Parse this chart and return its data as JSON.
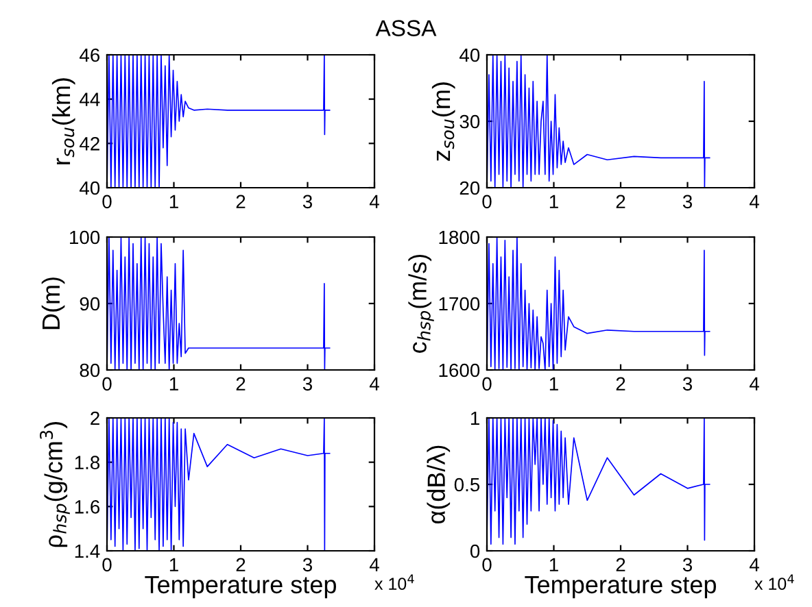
{
  "chart_data": [
    {
      "type": "line",
      "title": "ASSA",
      "ylabel": "r$_{sou}$(km)",
      "ylim": [
        40,
        46
      ],
      "yticks": [
        40,
        42,
        44,
        46
      ],
      "xlim": [
        0,
        4
      ],
      "xticks": [
        0,
        1,
        2,
        3,
        4
      ],
      "grid": false,
      "x": [
        0,
        0.03,
        0.06,
        0.09,
        0.12,
        0.15,
        0.18,
        0.21,
        0.24,
        0.27,
        0.3,
        0.33,
        0.36,
        0.39,
        0.42,
        0.45,
        0.48,
        0.51,
        0.54,
        0.57,
        0.6,
        0.63,
        0.66,
        0.69,
        0.72,
        0.75,
        0.78,
        0.81,
        0.84,
        0.87,
        0.9,
        0.93,
        0.96,
        0.99,
        1.02,
        1.05,
        1.08,
        1.11,
        1.14,
        1.17,
        1.22,
        1.3,
        1.5,
        1.8,
        2.2,
        2.6,
        3.0,
        3.24,
        3.25,
        3.255,
        3.26,
        3.33
      ],
      "series": [
        {
          "color": "#0000ff",
          "values": [
            40,
            46,
            40,
            46,
            40,
            46,
            40,
            46,
            40,
            46,
            40,
            46,
            40,
            46,
            40,
            46,
            40,
            46,
            40,
            46,
            40,
            46,
            40,
            46,
            40,
            46,
            40,
            46,
            41.8,
            45.5,
            41,
            46,
            42.3,
            45.3,
            42.6,
            44.8,
            43,
            44.2,
            43.2,
            43.9,
            43.6,
            43.5,
            43.55,
            43.5,
            43.5,
            43.5,
            43.5,
            43.5,
            46,
            42.4,
            43.5,
            43.5
          ]
        }
      ]
    },
    {
      "type": "line",
      "ylabel": "z$_{sou}$(m)",
      "ylim": [
        20,
        40
      ],
      "yticks": [
        20,
        30,
        40
      ],
      "xlim": [
        0,
        4
      ],
      "xticks": [
        0,
        1,
        2,
        3,
        4
      ],
      "grid": false,
      "x": [
        0,
        0.03,
        0.06,
        0.09,
        0.12,
        0.15,
        0.18,
        0.21,
        0.24,
        0.27,
        0.3,
        0.33,
        0.36,
        0.39,
        0.42,
        0.45,
        0.48,
        0.51,
        0.54,
        0.57,
        0.6,
        0.63,
        0.66,
        0.69,
        0.72,
        0.75,
        0.78,
        0.81,
        0.84,
        0.87,
        0.9,
        0.93,
        0.96,
        0.99,
        1.02,
        1.05,
        1.08,
        1.11,
        1.14,
        1.17,
        1.22,
        1.3,
        1.5,
        1.8,
        2.2,
        2.6,
        3.0,
        3.24,
        3.25,
        3.255,
        3.26,
        3.33
      ],
      "series": [
        {
          "color": "#0000ff",
          "values": [
            20,
            37,
            21,
            40,
            20,
            40,
            22,
            39,
            20,
            40,
            21,
            38,
            20,
            36,
            22,
            39,
            21,
            40,
            20,
            37,
            22,
            35,
            21,
            36,
            22,
            33,
            22,
            30,
            33,
            22,
            40,
            21,
            30,
            22,
            34,
            23,
            29,
            23.5,
            27,
            23.8,
            26,
            23.5,
            25,
            24.2,
            24.7,
            24.5,
            24.5,
            24.5,
            36,
            20,
            24.5,
            24.5
          ]
        }
      ]
    },
    {
      "type": "line",
      "ylabel": "D(m)",
      "ylim": [
        80,
        100
      ],
      "yticks": [
        80,
        90,
        100
      ],
      "xlim": [
        0,
        4
      ],
      "xticks": [
        0,
        1,
        2,
        3,
        4
      ],
      "grid": false,
      "x": [
        0,
        0.03,
        0.06,
        0.09,
        0.12,
        0.15,
        0.18,
        0.21,
        0.24,
        0.27,
        0.3,
        0.33,
        0.36,
        0.39,
        0.42,
        0.45,
        0.48,
        0.51,
        0.54,
        0.57,
        0.6,
        0.63,
        0.66,
        0.69,
        0.72,
        0.75,
        0.78,
        0.81,
        0.84,
        0.87,
        0.9,
        0.93,
        0.96,
        0.99,
        1.02,
        1.05,
        1.08,
        1.11,
        1.14,
        1.17,
        1.22,
        1.3,
        1.5,
        1.8,
        2.2,
        2.6,
        3.0,
        3.24,
        3.25,
        3.255,
        3.26,
        3.33
      ],
      "series": [
        {
          "color": "#0000ff",
          "values": [
            80,
            100,
            81,
            98,
            80,
            95,
            80,
            100,
            81,
            97,
            80,
            100,
            80,
            99,
            81,
            96,
            80,
            100,
            80,
            100,
            81,
            99,
            80,
            97,
            80,
            100,
            81,
            99,
            89,
            81,
            94,
            80,
            92,
            81,
            96,
            81,
            87,
            82,
            98,
            82.5,
            83.3,
            83.3,
            83.3,
            83.3,
            83.3,
            83.3,
            83.3,
            83.3,
            93,
            80,
            83.3,
            83.3
          ]
        }
      ]
    },
    {
      "type": "line",
      "ylabel": "c$_{hsp}$(m/s)",
      "ylim": [
        1600,
        1800
      ],
      "yticks": [
        1600,
        1700,
        1800
      ],
      "xlim": [
        0,
        4
      ],
      "xticks": [
        0,
        1,
        2,
        3,
        4
      ],
      "grid": false,
      "x": [
        0,
        0.03,
        0.06,
        0.09,
        0.12,
        0.15,
        0.18,
        0.21,
        0.24,
        0.27,
        0.3,
        0.33,
        0.36,
        0.39,
        0.42,
        0.45,
        0.48,
        0.51,
        0.54,
        0.57,
        0.6,
        0.63,
        0.66,
        0.69,
        0.72,
        0.75,
        0.78,
        0.81,
        0.84,
        0.87,
        0.9,
        0.93,
        0.96,
        0.99,
        1.02,
        1.05,
        1.08,
        1.11,
        1.14,
        1.17,
        1.22,
        1.3,
        1.5,
        1.8,
        2.2,
        2.6,
        3.0,
        3.24,
        3.25,
        3.255,
        3.26,
        3.33
      ],
      "series": [
        {
          "color": "#0000ff",
          "values": [
            1600,
            1790,
            1605,
            1760,
            1600,
            1800,
            1602,
            1770,
            1600,
            1795,
            1604,
            1740,
            1600,
            1780,
            1602,
            1800,
            1600,
            1760,
            1605,
            1720,
            1600,
            1700,
            1603,
            1690,
            1600,
            1680,
            1602,
            1650,
            1640,
            1600,
            1720,
            1605,
            1700,
            1600,
            1770,
            1610,
            1750,
            1620,
            1720,
            1630,
            1680,
            1665,
            1655,
            1660,
            1658,
            1658,
            1658,
            1658,
            1780,
            1622,
            1658,
            1658
          ]
        }
      ]
    },
    {
      "type": "line",
      "ylabel": "ρ$_{hsp}$(g/cm$^{3}$)",
      "xlabel": "Temperature step",
      "annotations": [
        "x 10$^{4}$"
      ],
      "ylim": [
        1.4,
        2
      ],
      "yticks": [
        1.4,
        1.6,
        1.8,
        2
      ],
      "xlim": [
        0,
        4
      ],
      "xticks": [
        0,
        1,
        2,
        3,
        4
      ],
      "grid": false,
      "x": [
        0,
        0.03,
        0.06,
        0.09,
        0.12,
        0.15,
        0.18,
        0.21,
        0.24,
        0.27,
        0.3,
        0.33,
        0.36,
        0.39,
        0.42,
        0.45,
        0.48,
        0.51,
        0.54,
        0.57,
        0.6,
        0.63,
        0.66,
        0.69,
        0.72,
        0.75,
        0.78,
        0.81,
        0.84,
        0.87,
        0.9,
        0.93,
        0.96,
        0.99,
        1.02,
        1.05,
        1.08,
        1.11,
        1.14,
        1.17,
        1.22,
        1.3,
        1.5,
        1.8,
        2.2,
        2.6,
        3.0,
        3.24,
        3.25,
        3.255,
        3.26,
        3.33
      ],
      "series": [
        {
          "color": "#0000ff",
          "values": [
            1.4,
            2,
            1.45,
            2,
            1.42,
            2,
            1.5,
            2,
            1.4,
            2,
            1.43,
            2,
            1.55,
            2,
            1.4,
            2,
            1.41,
            2,
            1.5,
            2,
            1.4,
            2,
            1.55,
            2,
            1.45,
            2,
            1.4,
            2,
            1.42,
            2,
            1.45,
            2,
            1.4,
            1.98,
            1.6,
            1.98,
            1.45,
            1.95,
            1.42,
            1.95,
            1.72,
            1.93,
            1.78,
            1.88,
            1.82,
            1.86,
            1.83,
            1.84,
            2,
            1.4,
            1.84,
            1.84
          ]
        }
      ]
    },
    {
      "type": "line",
      "ylabel": "α(dB/λ)",
      "xlabel": "Temperature step",
      "annotations": [
        "x 10$^{4}$"
      ],
      "ylim": [
        0,
        1
      ],
      "yticks": [
        0,
        0.5,
        1
      ],
      "xlim": [
        0,
        4
      ],
      "xticks": [
        0,
        1,
        2,
        3,
        4
      ],
      "grid": false,
      "x": [
        0,
        0.03,
        0.06,
        0.09,
        0.12,
        0.15,
        0.18,
        0.21,
        0.24,
        0.27,
        0.3,
        0.33,
        0.36,
        0.39,
        0.42,
        0.45,
        0.48,
        0.51,
        0.54,
        0.57,
        0.6,
        0.63,
        0.66,
        0.69,
        0.72,
        0.75,
        0.78,
        0.81,
        0.84,
        0.87,
        0.9,
        0.93,
        0.96,
        0.99,
        1.02,
        1.05,
        1.08,
        1.11,
        1.14,
        1.17,
        1.22,
        1.3,
        1.5,
        1.8,
        2.2,
        2.6,
        3.0,
        3.24,
        3.25,
        3.255,
        3.26,
        3.33
      ],
      "series": [
        {
          "color": "#0000ff",
          "values": [
            0.1,
            1,
            0.05,
            1,
            0.3,
            1,
            0.1,
            1,
            0.05,
            1,
            0.4,
            1,
            0.1,
            1,
            0.05,
            1,
            0.3,
            1,
            0.1,
            1,
            0.2,
            1,
            0.3,
            1,
            0.65,
            1,
            0.3,
            1,
            0.5,
            1,
            0.35,
            1,
            0.4,
            0.98,
            0.3,
            0.95,
            0.35,
            0.9,
            0.4,
            0.85,
            0.35,
            0.85,
            0.38,
            0.7,
            0.42,
            0.58,
            0.47,
            0.5,
            1,
            0.08,
            0.5,
            0.5
          ]
        }
      ]
    }
  ]
}
